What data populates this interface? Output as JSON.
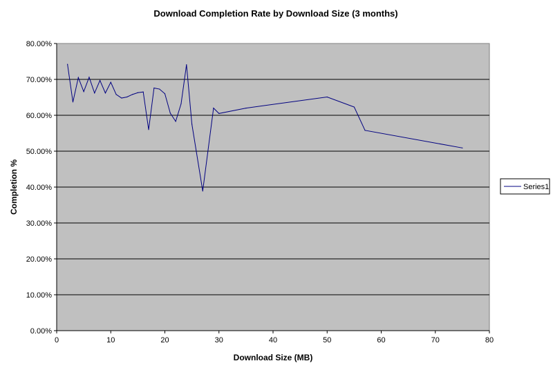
{
  "chart_data": {
    "type": "line",
    "title": "Download Completion Rate by Download Size (3 months)",
    "xlabel": "Download Size (MB)",
    "ylabel": "Completion %",
    "xlim": [
      0,
      80
    ],
    "ylim": [
      0,
      0.8
    ],
    "x_ticks": [
      "0",
      "10",
      "20",
      "30",
      "40",
      "50",
      "60",
      "70",
      "80"
    ],
    "y_ticks": [
      "0.00%",
      "10.00%",
      "20.00%",
      "30.00%",
      "40.00%",
      "50.00%",
      "60.00%",
      "70.00%",
      "80.00%"
    ],
    "grid": "horizontal major gridlines",
    "legend_position": "right",
    "plot_background": "#c0c0c0",
    "series_color": "#000080",
    "series": [
      {
        "name": "Series1",
        "x": [
          2,
          3,
          4,
          5,
          6,
          7,
          8,
          9,
          10,
          11,
          12,
          13,
          14,
          15,
          16,
          17,
          18,
          19,
          20,
          21,
          22,
          23,
          24,
          25,
          27,
          29,
          30,
          35,
          50,
          55,
          57,
          75
        ],
        "y": [
          0.742,
          0.637,
          0.705,
          0.666,
          0.706,
          0.662,
          0.697,
          0.662,
          0.692,
          0.658,
          0.648,
          0.651,
          0.658,
          0.663,
          0.665,
          0.56,
          0.676,
          0.673,
          0.66,
          0.606,
          0.583,
          0.632,
          0.741,
          0.575,
          0.389,
          0.62,
          0.605,
          0.62,
          0.651,
          0.623,
          0.558,
          0.509
        ]
      }
    ]
  }
}
